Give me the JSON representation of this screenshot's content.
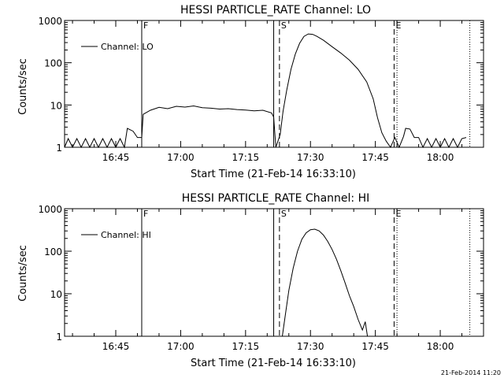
{
  "footer": {
    "timestamp": "21-Feb-2014 11:20"
  },
  "chart_data": [
    {
      "type": "line",
      "title": "HESSI PARTICLE_RATE Channel: LO",
      "xlabel": "Start Time (21-Feb-14 16:33:10)",
      "ylabel": "Counts/sec",
      "yscale": "log",
      "ylim": [
        1,
        1000
      ],
      "xlim": [
        "16:33:10",
        "18:10:00"
      ],
      "xticks": [
        "16:45",
        "17:00",
        "17:15",
        "17:30",
        "17:45",
        "18:00"
      ],
      "yticks": [
        "1",
        "10",
        "100",
        "1000"
      ],
      "legend": {
        "label": "Channel: LO",
        "placement": "top-left"
      },
      "markers": [
        {
          "time": "16:51:00",
          "style": "solid",
          "label": "F"
        },
        {
          "time": "17:21:30",
          "style": "solid",
          "label": ""
        },
        {
          "time": "17:22:50",
          "style": "dashed",
          "label": "S"
        },
        {
          "time": "17:49:20",
          "style": "dashed",
          "label": "E"
        },
        {
          "time": "17:50:00",
          "style": "dotted",
          "label": ""
        },
        {
          "time": "18:06:50",
          "style": "dotted",
          "label": ""
        }
      ],
      "series": [
        {
          "name": "Channel: LO",
          "points": [
            [
              "16:33:10",
              1
            ],
            [
              "16:34:00",
              1.6
            ],
            [
              "16:35:00",
              1
            ],
            [
              "16:36:00",
              1.6
            ],
            [
              "16:37:00",
              1
            ],
            [
              "16:38:00",
              1.6
            ],
            [
              "16:39:00",
              1
            ],
            [
              "16:40:00",
              1.6
            ],
            [
              "16:41:00",
              1
            ],
            [
              "16:42:00",
              1.6
            ],
            [
              "16:43:00",
              1
            ],
            [
              "16:44:00",
              1.6
            ],
            [
              "16:45:00",
              1
            ],
            [
              "16:46:00",
              1.6
            ],
            [
              "16:47:00",
              1
            ],
            [
              "16:47:40",
              2.8
            ],
            [
              "16:49:00",
              2.4
            ],
            [
              "16:50:00",
              1.7
            ],
            [
              "16:51:00",
              1.7
            ],
            [
              "16:51:20",
              6
            ],
            [
              "16:53:00",
              7.5
            ],
            [
              "16:55:00",
              8.8
            ],
            [
              "16:57:00",
              8.2
            ],
            [
              "16:59:00",
              9.3
            ],
            [
              "17:01:00",
              8.9
            ],
            [
              "17:03:00",
              9.5
            ],
            [
              "17:05:00",
              8.6
            ],
            [
              "17:07:00",
              8.4
            ],
            [
              "17:09:00",
              8
            ],
            [
              "17:11:00",
              8.2
            ],
            [
              "17:13:00",
              7.8
            ],
            [
              "17:15:00",
              7.6
            ],
            [
              "17:17:00",
              7.3
            ],
            [
              "17:19:00",
              7.5
            ],
            [
              "17:21:00",
              6.5
            ],
            [
              "17:21:30",
              5.2
            ],
            [
              "17:22:00",
              1
            ],
            [
              "17:23:00",
              2
            ],
            [
              "17:23:40",
              7
            ],
            [
              "17:24:30",
              22
            ],
            [
              "17:25:30",
              70
            ],
            [
              "17:26:30",
              160
            ],
            [
              "17:27:30",
              290
            ],
            [
              "17:28:30",
              420
            ],
            [
              "17:29:30",
              480
            ],
            [
              "17:30:30",
              470
            ],
            [
              "17:31:30",
              420
            ],
            [
              "17:33:00",
              340
            ],
            [
              "17:35:00",
              240
            ],
            [
              "17:37:00",
              170
            ],
            [
              "17:39:00",
              115
            ],
            [
              "17:41:00",
              70
            ],
            [
              "17:43:00",
              35
            ],
            [
              "17:44:30",
              14
            ],
            [
              "17:45:30",
              5
            ],
            [
              "17:46:30",
              2.2
            ],
            [
              "17:47:30",
              1.4
            ],
            [
              "17:48:30",
              1
            ],
            [
              "17:49:30",
              1.7
            ],
            [
              "17:50:30",
              1
            ],
            [
              "17:51:30",
              1.8
            ],
            [
              "17:52:00",
              2.8
            ],
            [
              "17:53:00",
              2.7
            ],
            [
              "17:54:00",
              1.7
            ],
            [
              "17:55:00",
              1.7
            ],
            [
              "17:56:00",
              1
            ],
            [
              "17:57:00",
              1.6
            ],
            [
              "17:58:00",
              1
            ],
            [
              "17:59:00",
              1.6
            ],
            [
              "18:00:00",
              1
            ],
            [
              "18:01:00",
              1.6
            ],
            [
              "18:02:00",
              1
            ],
            [
              "18:03:00",
              1.6
            ],
            [
              "18:04:00",
              1
            ],
            [
              "18:05:00",
              1.6
            ],
            [
              "18:06:00",
              1.7
            ]
          ]
        }
      ]
    },
    {
      "type": "line",
      "title": "HESSI PARTICLE_RATE Channel: HI",
      "xlabel": "Start Time (21-Feb-14 16:33:10)",
      "ylabel": "Counts/sec",
      "yscale": "log",
      "ylim": [
        1,
        1000
      ],
      "xlim": [
        "16:33:10",
        "18:10:00"
      ],
      "xticks": [
        "16:45",
        "17:00",
        "17:15",
        "17:30",
        "17:45",
        "18:00"
      ],
      "yticks": [
        "1",
        "10",
        "100",
        "1000"
      ],
      "legend": {
        "label": "Channel: HI",
        "placement": "top-left"
      },
      "markers": [
        {
          "time": "16:51:00",
          "style": "solid",
          "label": "F"
        },
        {
          "time": "17:21:30",
          "style": "solid",
          "label": ""
        },
        {
          "time": "17:22:50",
          "style": "dashed",
          "label": "S"
        },
        {
          "time": "17:49:20",
          "style": "dashed",
          "label": "E"
        },
        {
          "time": "17:50:00",
          "style": "dotted",
          "label": ""
        },
        {
          "time": "18:06:50",
          "style": "dotted",
          "label": ""
        }
      ],
      "series": [
        {
          "name": "Channel: HI",
          "points": [
            [
              "17:23:30",
              1
            ],
            [
              "17:24:20",
              4
            ],
            [
              "17:25:00",
              12
            ],
            [
              "17:26:00",
              40
            ],
            [
              "17:27:00",
              100
            ],
            [
              "17:28:00",
              190
            ],
            [
              "17:29:00",
              270
            ],
            [
              "17:30:00",
              320
            ],
            [
              "17:31:00",
              330
            ],
            [
              "17:32:00",
              300
            ],
            [
              "17:33:00",
              240
            ],
            [
              "17:34:00",
              170
            ],
            [
              "17:35:00",
              110
            ],
            [
              "17:36:00",
              65
            ],
            [
              "17:37:00",
              35
            ],
            [
              "17:38:00",
              18
            ],
            [
              "17:39:00",
              9
            ],
            [
              "17:40:00",
              5
            ],
            [
              "17:41:00",
              2.5
            ],
            [
              "17:42:00",
              1.4
            ],
            [
              "17:42:40",
              2.2
            ],
            [
              "17:43:10",
              1
            ]
          ]
        }
      ]
    }
  ]
}
